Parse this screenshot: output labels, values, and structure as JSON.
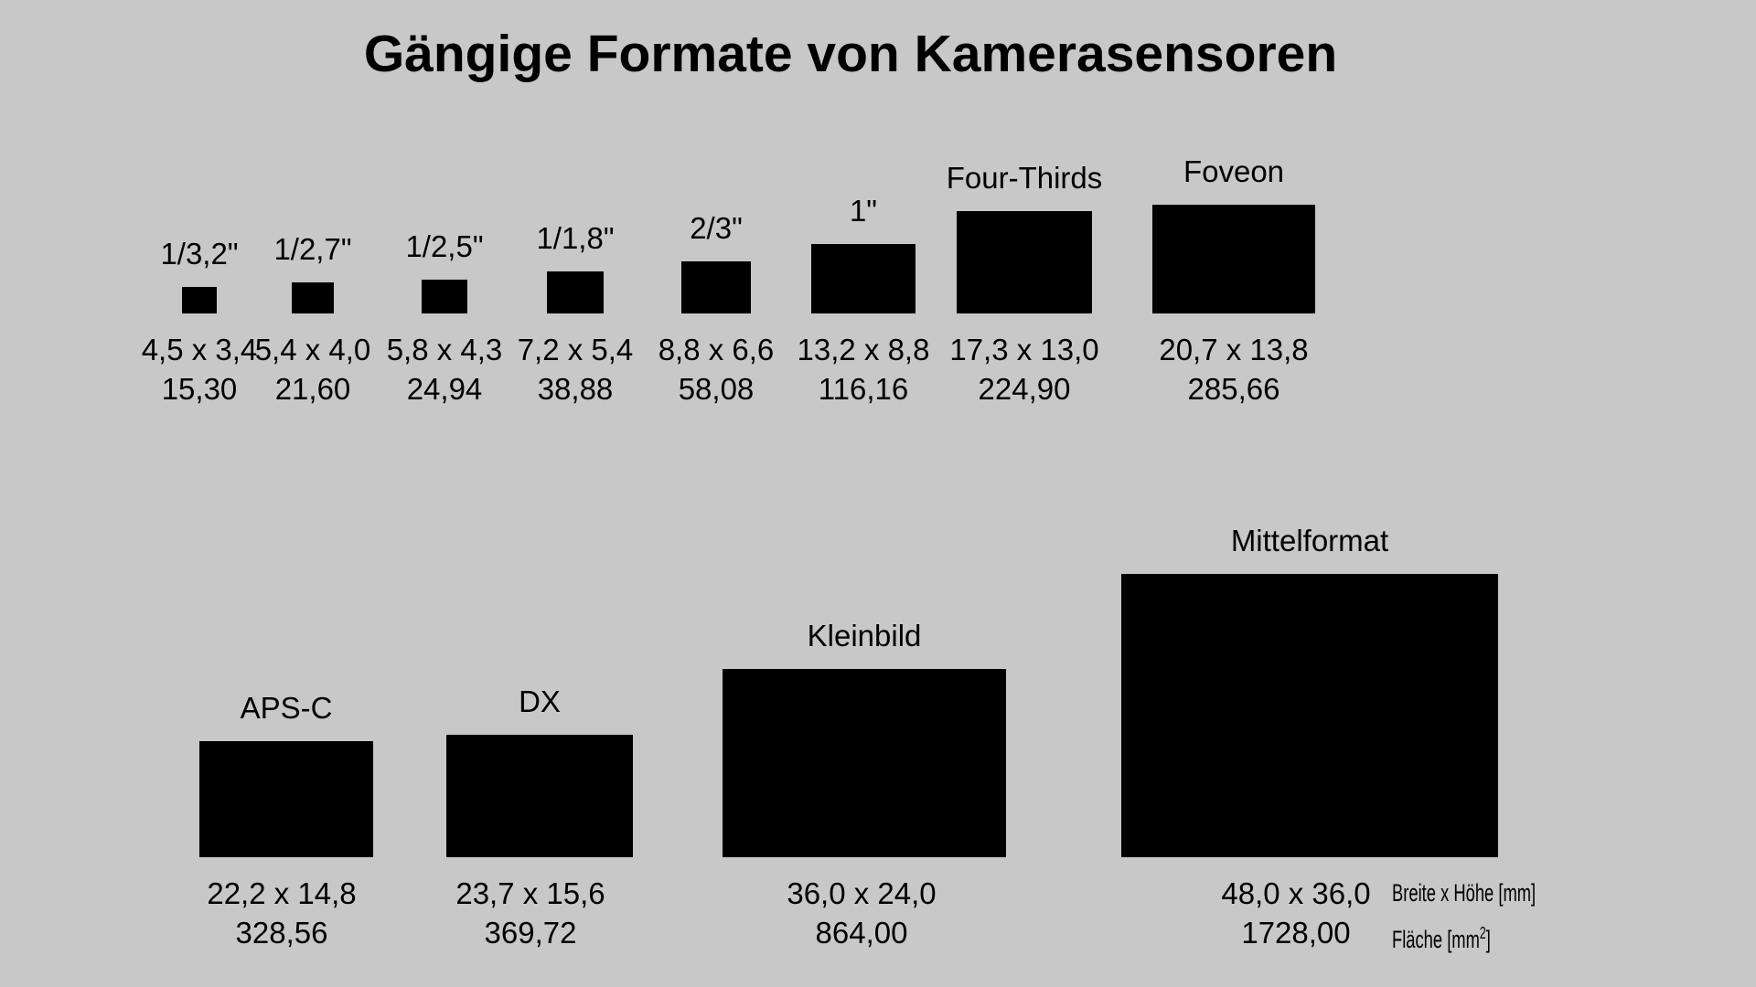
{
  "title": "Gängige Formate von Kamerasensoren",
  "colors": {
    "background": "#c8c8c8",
    "sensor": "#000000",
    "text": "#000000"
  },
  "legend": {
    "dims_label": "Breite x Höhe [mm]",
    "area_label_prefix": "Fläche [mm",
    "area_label_exponent": "2",
    "area_label_suffix": "]"
  },
  "sensors": [
    {
      "name": "1/3,2\"",
      "width_mm": 4.5,
      "height_mm": 3.4,
      "dims": "4,5 x 3,4",
      "area": "15,30"
    },
    {
      "name": "1/2,7\"",
      "width_mm": 5.4,
      "height_mm": 4.0,
      "dims": "5,4 x 4,0",
      "area": "21,60"
    },
    {
      "name": "1/2,5\"",
      "width_mm": 5.8,
      "height_mm": 4.3,
      "dims": "5,8 x 4,3",
      "area": "24,94"
    },
    {
      "name": "1/1,8\"",
      "width_mm": 7.2,
      "height_mm": 5.4,
      "dims": "7,2 x 5,4",
      "area": "38,88"
    },
    {
      "name": "2/3\"",
      "width_mm": 8.8,
      "height_mm": 6.6,
      "dims": "8,8 x 6,6",
      "area": "58,08"
    },
    {
      "name": "1\"",
      "width_mm": 13.2,
      "height_mm": 8.8,
      "dims": "13,2 x 8,8",
      "area": "116,16"
    },
    {
      "name": "Four-Thirds",
      "width_mm": 17.3,
      "height_mm": 13.0,
      "dims": "17,3 x 13,0",
      "area": "224,90"
    },
    {
      "name": "Foveon",
      "width_mm": 20.7,
      "height_mm": 13.8,
      "dims": "20,7 x 13,8",
      "area": "285,66"
    },
    {
      "name": "APS-C",
      "width_mm": 22.2,
      "height_mm": 14.8,
      "dims": "22,2 x 14,8",
      "area": "328,56"
    },
    {
      "name": "DX",
      "width_mm": 23.7,
      "height_mm": 15.6,
      "dims": "23,7 x 15,6",
      "area": "369,72"
    },
    {
      "name": "Kleinbild",
      "width_mm": 36.0,
      "height_mm": 24.0,
      "dims": "36,0 x 24,0",
      "area": "864,00"
    },
    {
      "name": "Mittelformat",
      "width_mm": 48.0,
      "height_mm": 36.0,
      "dims": "48,0 x 36,0",
      "area": "1728,00"
    }
  ]
}
